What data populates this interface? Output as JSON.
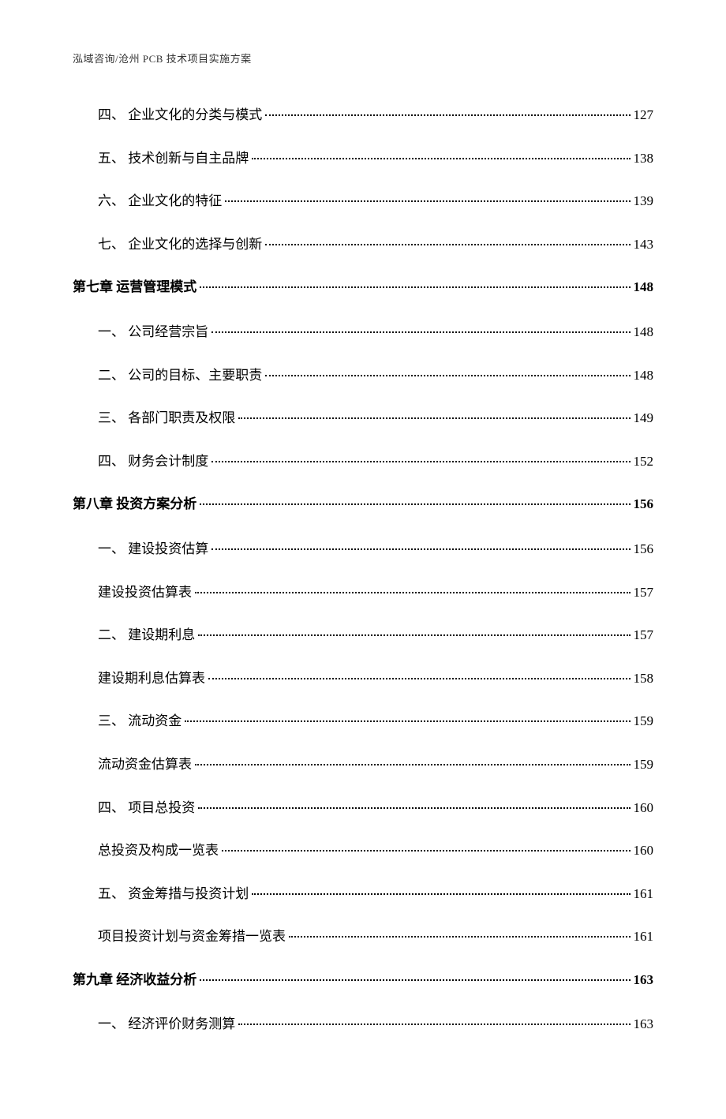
{
  "header": "泓域咨询/沧州 PCB 技术项目实施方案",
  "entries": [
    {
      "level": "indent1",
      "label": "四、 企业文化的分类与模式",
      "page": "127"
    },
    {
      "level": "indent1",
      "label": "五、 技术创新与自主品牌",
      "page": "138"
    },
    {
      "level": "indent1",
      "label": "六、 企业文化的特征",
      "page": "139"
    },
    {
      "level": "indent1",
      "label": "七、 企业文化的选择与创新",
      "page": "143"
    },
    {
      "level": "chapter",
      "label": "第七章 运营管理模式",
      "page": "148"
    },
    {
      "level": "indent1",
      "label": "一、 公司经营宗旨",
      "page": "148"
    },
    {
      "level": "indent1",
      "label": "二、 公司的目标、主要职责",
      "page": "148"
    },
    {
      "level": "indent1",
      "label": "三、 各部门职责及权限",
      "page": "149"
    },
    {
      "level": "indent1",
      "label": "四、 财务会计制度",
      "page": "152"
    },
    {
      "level": "chapter",
      "label": "第八章 投资方案分析",
      "page": "156"
    },
    {
      "level": "indent1",
      "label": "一、 建设投资估算",
      "page": "156"
    },
    {
      "level": "indent1",
      "label": "建设投资估算表",
      "page": "157"
    },
    {
      "level": "indent1",
      "label": "二、 建设期利息",
      "page": "157"
    },
    {
      "level": "indent1",
      "label": "建设期利息估算表",
      "page": "158"
    },
    {
      "level": "indent1",
      "label": "三、 流动资金",
      "page": "159"
    },
    {
      "level": "indent1",
      "label": "流动资金估算表",
      "page": "159"
    },
    {
      "level": "indent1",
      "label": "四、 项目总投资",
      "page": "160"
    },
    {
      "level": "indent1",
      "label": "总投资及构成一览表",
      "page": "160"
    },
    {
      "level": "indent1",
      "label": "五、 资金筹措与投资计划",
      "page": "161"
    },
    {
      "level": "indent1",
      "label": "项目投资计划与资金筹措一览表",
      "page": "161"
    },
    {
      "level": "chapter",
      "label": "第九章 经济收益分析",
      "page": "163"
    },
    {
      "level": "indent1",
      "label": "一、 经济评价财务测算",
      "page": "163"
    }
  ]
}
